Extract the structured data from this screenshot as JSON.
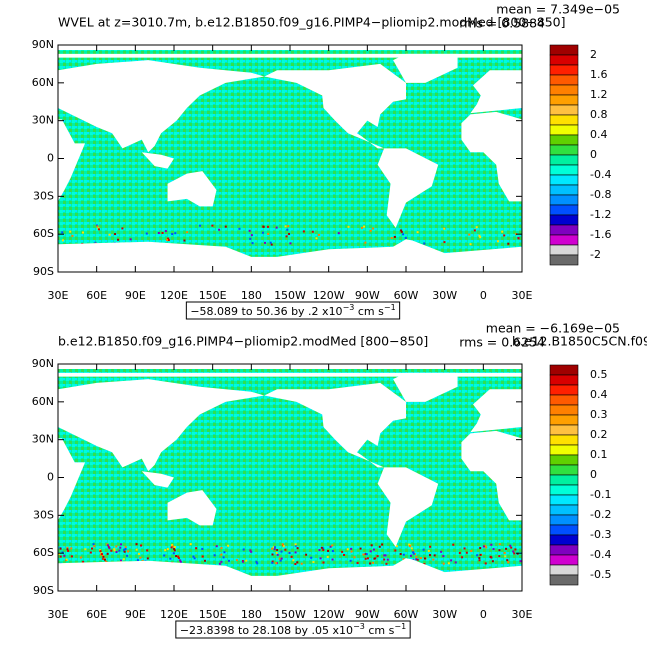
{
  "palette": [
    "#a00000",
    "#d80000",
    "#ff2000",
    "#ff5a00",
    "#ff8000",
    "#ffa000",
    "#ffc040",
    "#ffe000",
    "#f0ff00",
    "#60d000",
    "#30e040",
    "#00f0a0",
    "#00ffd8",
    "#00e8ff",
    "#00c0ff",
    "#0090ff",
    "#0050ff",
    "#0000d0",
    "#8000c0",
    "#d000d0",
    "#d8d8d8",
    "#6a6a6a"
  ],
  "lat_labels": [
    "90N",
    "60N",
    "30N",
    "0",
    "30S",
    "60S",
    "90S"
  ],
  "lon_labels": [
    "30E",
    "60E",
    "90E",
    "120E",
    "150E",
    "180",
    "150W",
    "120W",
    "90W",
    "60W",
    "30W",
    "0",
    "30E"
  ],
  "panels": [
    {
      "title": "WVEL at z=3010.7m, b.e12.B1850.f09_g16.PIMP4−pliomip2.modMed [800−850]",
      "mean": "mean = 7.349e−05",
      "rms": "rms = 0.5884",
      "colorbar": [
        2,
        1.6,
        1.2,
        0.8,
        0.4,
        0,
        -0.4,
        -0.8,
        -1.2,
        -1.6,
        -2
      ],
      "caption": {
        "text": "−58.089 to 50.36 by .2 x10",
        "exp": "−3",
        "unit": " cm s",
        "unit_exp": "−1"
      }
    },
    {
      "title": "b.e12.B1850.f09_g16.PIMP4−pliomip2.modMed [800−850]",
      "case": "b.e12.B1850C5CN.f09",
      "mean": "mean = −6.169e−05",
      "rms": "rms = 0.6254",
      "colorbar": [
        0.5,
        0.4,
        0.3,
        0.2,
        0.1,
        0,
        -0.1,
        -0.2,
        -0.3,
        -0.4,
        -0.5
      ],
      "caption": {
        "text": "−23.8398 to 28.108 by .05 x10",
        "exp": "−3",
        "unit": " cm s",
        "unit_exp": "−1"
      }
    }
  ]
}
